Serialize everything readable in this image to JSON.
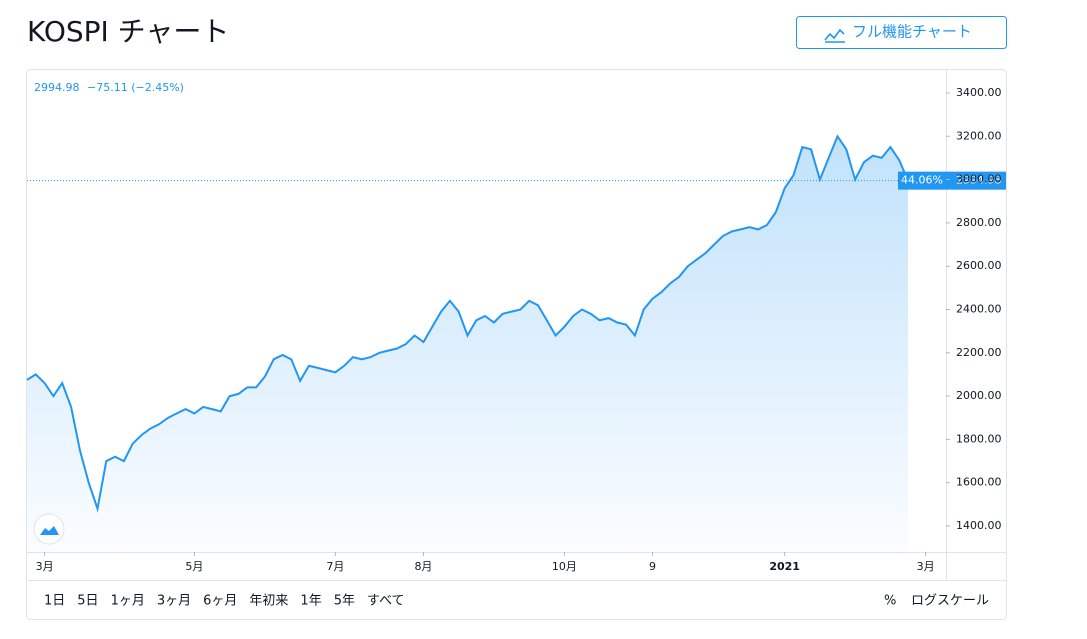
{
  "header": {
    "title": "KOSPI チャート",
    "button": "フル機能チャート"
  },
  "chart_data": {
    "type": "line",
    "change": "−75.11 (−2.45%)",
    "percent_change": "44.06%",
    "categories": [
      null,
      null,
      "3月",
      null,
      null,
      null,
      null,
      null,
      null,
      null,
      null,
      null,
      null,
      null,
      null,
      null,
      null,
      null,
      null,
      "5月",
      null,
      null,
      null,
      null,
      null,
      null,
      null,
      null,
      null,
      null,
      null,
      null,
      null,
      null,
      null,
      "7月",
      null,
      null,
      null,
      null,
      null,
      null,
      null,
      null,
      null,
      "8月",
      null,
      null,
      null,
      null,
      null,
      null,
      null,
      null,
      null,
      null,
      null,
      null,
      null,
      null,
      null,
      "10月",
      null,
      null,
      null,
      null,
      null,
      null,
      null,
      null,
      null,
      "9",
      null,
      null,
      null,
      null,
      null,
      null,
      null,
      null,
      null,
      null,
      null,
      null,
      null,
      null,
      "2021",
      null,
      null,
      null,
      null,
      null,
      null,
      null,
      null,
      null,
      null,
      null,
      null,
      null,
      null,
      null,
      "3月"
    ],
    "series": [
      {
        "name": "KOSPI",
        "color": "#2196f3",
        "values": [
          2075,
          2100,
          2060,
          2000,
          2060,
          1950,
          1750,
          1600,
          1480,
          1700,
          1720,
          1700,
          1780,
          1820,
          1850,
          1870,
          1900,
          1920,
          1940,
          1920,
          1950,
          1940,
          1930,
          2000,
          2010,
          2040,
          2040,
          2090,
          2170,
          2190,
          2170,
          2070,
          2140,
          2130,
          2120,
          2110,
          2140,
          2180,
          2170,
          2180,
          2200,
          2210,
          2220,
          2240,
          2280,
          2250,
          2320,
          2390,
          2440,
          2390,
          2280,
          2350,
          2370,
          2340,
          2380,
          2390,
          2400,
          2440,
          2420,
          2350,
          2280,
          2320,
          2370,
          2400,
          2380,
          2350,
          2360,
          2340,
          2330,
          2280,
          2400,
          2450,
          2480,
          2520,
          2550,
          2600,
          2630,
          2660,
          2700,
          2740,
          2760,
          2770,
          2780,
          2770,
          2790,
          2850,
          2960,
          3020,
          3150,
          3140,
          3000,
          3100,
          3200,
          3140,
          3000,
          3080,
          3110,
          3100,
          3150,
          3090,
          2994.98,
          null,
          null
        ]
      }
    ],
    "ylim": [
      1280,
      3506
    ],
    "yticks": [
      {
        "value": 1400,
        "label": "1400.00"
      },
      {
        "value": 1600,
        "label": "1600.00"
      },
      {
        "value": 1800,
        "label": "1800.00"
      },
      {
        "value": 2000,
        "label": "2000.00"
      },
      {
        "value": 2200,
        "label": "2200.00"
      },
      {
        "value": 2400,
        "label": "2400.00"
      },
      {
        "value": 2600,
        "label": "2600.00"
      },
      {
        "value": 2800,
        "label": "2800.00"
      },
      {
        "value": 3000,
        "label": "3000.00"
      },
      {
        "value": 3200,
        "label": "3200.00"
      },
      {
        "value": 3400,
        "label": "3400.00"
      }
    ]
  },
  "toolbar": {
    "ranges": [
      "1日",
      "5日",
      "1ヶ月",
      "3ヶ月",
      "6ヶ月",
      "年初来",
      "1年",
      "5年",
      "すべて"
    ],
    "percent": "%",
    "log": "ログスケール"
  }
}
